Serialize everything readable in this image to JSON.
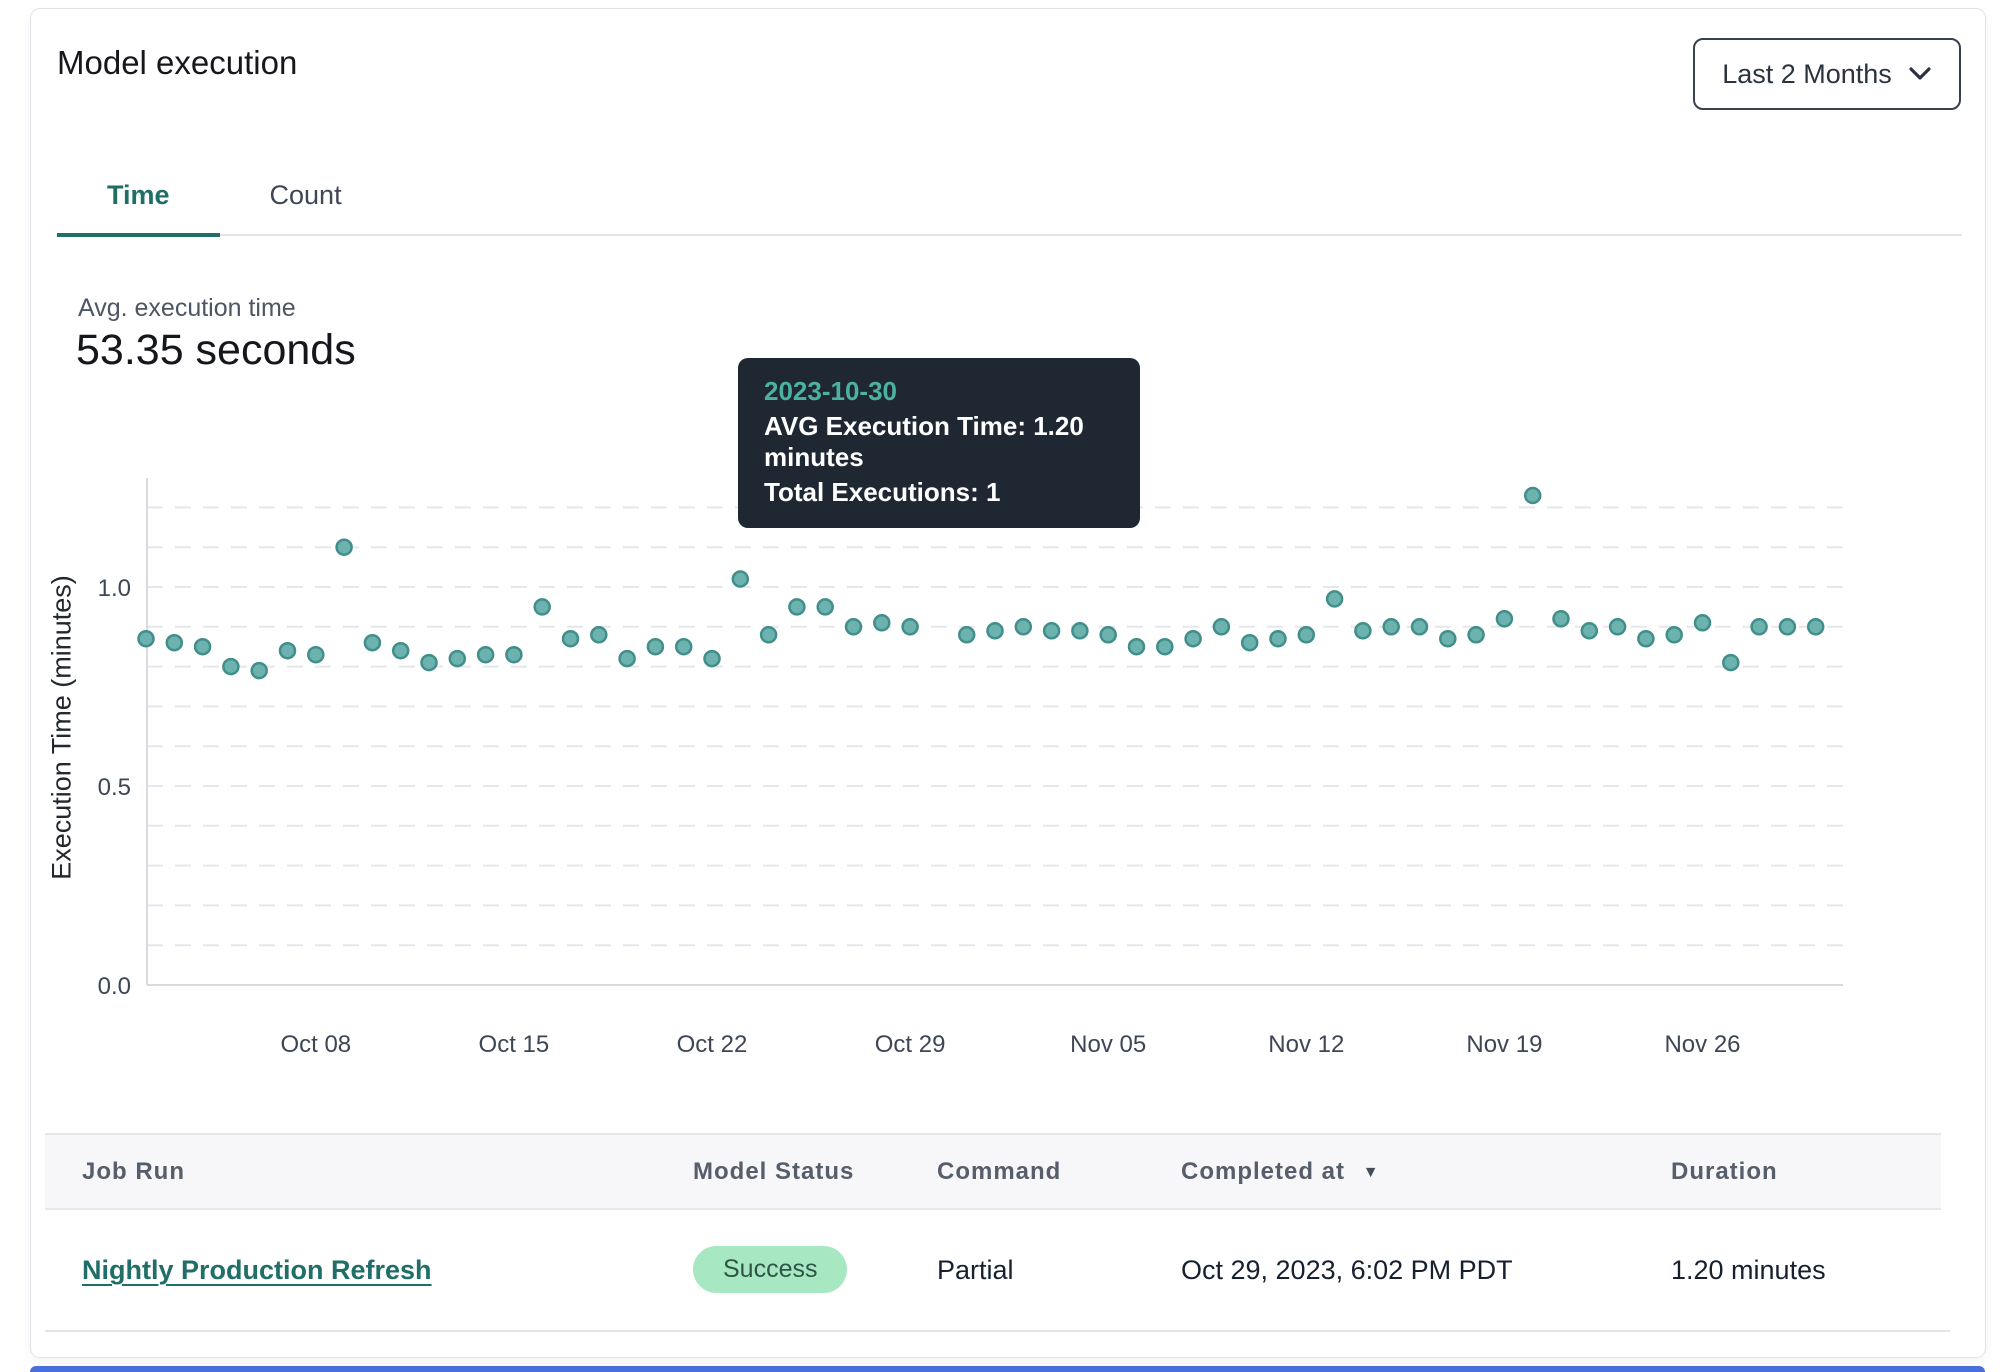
{
  "header": {
    "title": "Model execution",
    "range_selector": {
      "label": "Last 2 Months",
      "icon": "chevron-down"
    }
  },
  "tabs": [
    {
      "label": "Time",
      "active": true
    },
    {
      "label": "Count",
      "active": false
    }
  ],
  "summary": {
    "label": "Avg. execution time",
    "value": "53.35 seconds"
  },
  "tooltip": {
    "date": "2023-10-30",
    "avg_execution_time": "AVG Execution Time: 1.20 minutes",
    "total_executions": "Total Executions: 1"
  },
  "chart_data": {
    "type": "scatter",
    "title": "",
    "xlabel": "",
    "ylabel": "Execution Time (minutes)",
    "ylim": [
      0,
      1.25
    ],
    "yticks": [
      0,
      0.5,
      1
    ],
    "grid": "dashed horizontal every 0.1 up to 1.2",
    "x_tick_labels": [
      "Oct 08",
      "Oct 15",
      "Oct 22",
      "Oct 29",
      "Nov 05",
      "Nov 12",
      "Nov 19",
      "Nov 26"
    ],
    "x_tick_day_indices": [
      6,
      13,
      20,
      27,
      34,
      41,
      48,
      55
    ],
    "highlight_date": "2023-10-30",
    "colors": {
      "point_fill": "#6cb2ae",
      "point_stroke": "#418e8a",
      "point_active_fill": "#3e7c82",
      "point_active_stroke": "#2e6366",
      "grid": "#e6e7eb",
      "axis": "#d9dade"
    },
    "points": [
      {
        "date": "2023-10-02",
        "value": 0.87
      },
      {
        "date": "2023-10-03",
        "value": 0.86
      },
      {
        "date": "2023-10-04",
        "value": 0.85
      },
      {
        "date": "2023-10-05",
        "value": 0.8
      },
      {
        "date": "2023-10-06",
        "value": 0.79
      },
      {
        "date": "2023-10-07",
        "value": 0.84
      },
      {
        "date": "2023-10-08",
        "value": 0.83
      },
      {
        "date": "2023-10-09",
        "value": 1.1
      },
      {
        "date": "2023-10-10",
        "value": 0.86
      },
      {
        "date": "2023-10-11",
        "value": 0.84
      },
      {
        "date": "2023-10-12",
        "value": 0.81
      },
      {
        "date": "2023-10-13",
        "value": 0.82
      },
      {
        "date": "2023-10-14",
        "value": 0.83
      },
      {
        "date": "2023-10-15",
        "value": 0.83
      },
      {
        "date": "2023-10-16",
        "value": 0.95
      },
      {
        "date": "2023-10-17",
        "value": 0.87
      },
      {
        "date": "2023-10-18",
        "value": 0.88
      },
      {
        "date": "2023-10-19",
        "value": 0.82
      },
      {
        "date": "2023-10-20",
        "value": 0.85
      },
      {
        "date": "2023-10-21",
        "value": 0.85
      },
      {
        "date": "2023-10-22",
        "value": 0.82
      },
      {
        "date": "2023-10-23",
        "value": 1.02
      },
      {
        "date": "2023-10-24",
        "value": 0.88
      },
      {
        "date": "2023-10-25",
        "value": 0.95
      },
      {
        "date": "2023-10-26",
        "value": 0.95
      },
      {
        "date": "2023-10-27",
        "value": 0.9
      },
      {
        "date": "2023-10-28",
        "value": 0.91
      },
      {
        "date": "2023-10-29",
        "value": 0.9
      },
      {
        "date": "2023-10-30",
        "value": 1.2
      },
      {
        "date": "2023-10-31",
        "value": 0.88
      },
      {
        "date": "2023-11-01",
        "value": 0.89
      },
      {
        "date": "2023-11-02",
        "value": 0.9
      },
      {
        "date": "2023-11-03",
        "value": 0.89
      },
      {
        "date": "2023-11-04",
        "value": 0.89
      },
      {
        "date": "2023-11-05",
        "value": 0.88
      },
      {
        "date": "2023-11-06",
        "value": 0.85
      },
      {
        "date": "2023-11-07",
        "value": 0.85
      },
      {
        "date": "2023-11-08",
        "value": 0.87
      },
      {
        "date": "2023-11-09",
        "value": 0.9
      },
      {
        "date": "2023-11-10",
        "value": 0.86
      },
      {
        "date": "2023-11-11",
        "value": 0.87
      },
      {
        "date": "2023-11-12",
        "value": 0.88
      },
      {
        "date": "2023-11-13",
        "value": 0.97
      },
      {
        "date": "2023-11-14",
        "value": 0.89
      },
      {
        "date": "2023-11-15",
        "value": 0.9
      },
      {
        "date": "2023-11-16",
        "value": 0.9
      },
      {
        "date": "2023-11-17",
        "value": 0.87
      },
      {
        "date": "2023-11-18",
        "value": 0.88
      },
      {
        "date": "2023-11-19",
        "value": 0.92
      },
      {
        "date": "2023-11-20",
        "value": 1.23
      },
      {
        "date": "2023-11-21",
        "value": 0.92
      },
      {
        "date": "2023-11-22",
        "value": 0.89
      },
      {
        "date": "2023-11-23",
        "value": 0.9
      },
      {
        "date": "2023-11-24",
        "value": 0.87
      },
      {
        "date": "2023-11-25",
        "value": 0.88
      },
      {
        "date": "2023-11-26",
        "value": 0.91
      },
      {
        "date": "2023-11-27",
        "value": 0.81
      },
      {
        "date": "2023-11-28",
        "value": 0.9
      },
      {
        "date": "2023-11-29",
        "value": 0.9
      },
      {
        "date": "2023-11-30",
        "value": 0.9
      }
    ]
  },
  "table": {
    "columns": [
      {
        "label": "Job Run"
      },
      {
        "label": "Model Status"
      },
      {
        "label": "Command"
      },
      {
        "label": "Completed at",
        "sorted": "desc",
        "sort_icon": "triangle-down"
      },
      {
        "label": "Duration"
      }
    ],
    "rows": [
      {
        "job_run": "Nightly Production Refresh",
        "model_status": "Success",
        "command": "Partial",
        "completed_at": "Oct 29, 2023, 6:02 PM PDT",
        "duration": "1.20 minutes"
      }
    ]
  }
}
